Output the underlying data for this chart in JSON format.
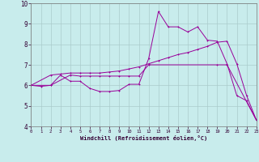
{
  "xlabel": "Windchill (Refroidissement éolien,°C)",
  "background_color": "#c8ecec",
  "grid_color": "#b0d8d8",
  "line_color": "#990099",
  "xlim": [
    0,
    23
  ],
  "ylim": [
    4,
    10
  ],
  "yticks": [
    4,
    5,
    6,
    7,
    8,
    9,
    10
  ],
  "xticks": [
    0,
    1,
    2,
    3,
    4,
    5,
    6,
    7,
    8,
    9,
    10,
    11,
    12,
    13,
    14,
    15,
    16,
    17,
    18,
    19,
    20,
    21,
    22,
    23
  ],
  "line1_x": [
    0,
    1,
    2,
    3,
    4,
    5,
    6,
    7,
    8,
    9,
    10,
    11,
    12,
    13,
    14,
    15,
    16,
    17,
    18,
    19,
    20,
    21,
    22,
    23
  ],
  "line1_y": [
    6.0,
    5.95,
    6.0,
    6.5,
    6.2,
    6.2,
    5.85,
    5.7,
    5.7,
    5.75,
    6.05,
    6.05,
    7.3,
    9.6,
    8.85,
    8.85,
    8.6,
    8.85,
    8.2,
    8.15,
    7.05,
    5.5,
    5.25,
    4.3
  ],
  "line2_x": [
    0,
    2,
    3,
    4,
    5,
    6,
    7,
    8,
    9,
    10,
    11,
    12,
    13,
    14,
    15,
    16,
    17,
    18,
    19,
    20,
    21,
    22,
    23
  ],
  "line2_y": [
    6.0,
    6.5,
    6.55,
    6.6,
    6.6,
    6.6,
    6.6,
    6.65,
    6.7,
    6.8,
    6.9,
    7.05,
    7.2,
    7.35,
    7.5,
    7.6,
    7.75,
    7.9,
    8.1,
    8.15,
    7.05,
    5.5,
    4.3
  ],
  "line3_x": [
    0,
    2,
    4,
    5,
    6,
    7,
    8,
    9,
    10,
    11,
    12,
    19,
    20,
    23
  ],
  "line3_y": [
    6.0,
    6.0,
    6.5,
    6.45,
    6.45,
    6.45,
    6.45,
    6.45,
    6.45,
    6.45,
    7.0,
    7.0,
    7.0,
    4.3
  ]
}
